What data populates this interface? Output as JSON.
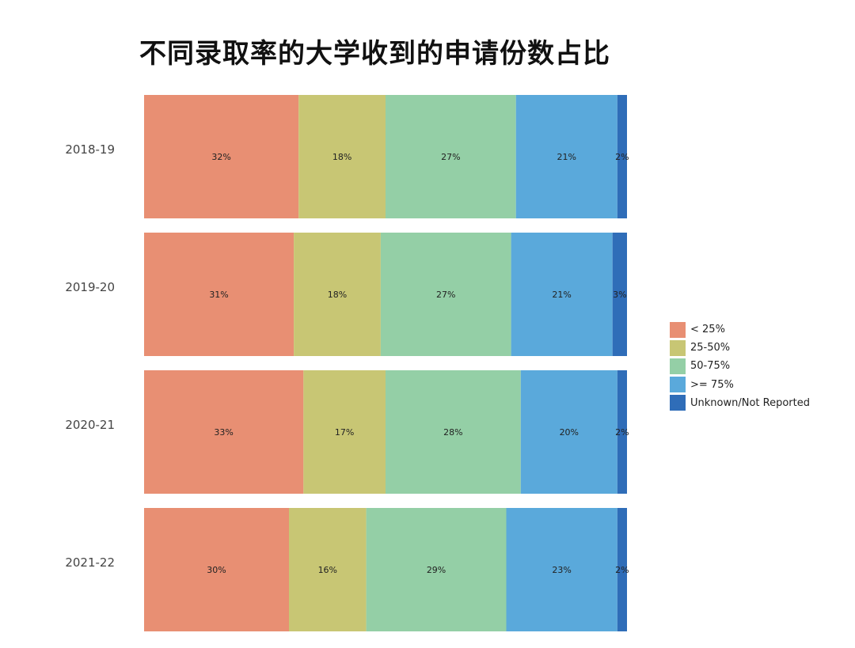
{
  "chart_data": {
    "type": "bar",
    "orientation": "horizontal",
    "stacked": true,
    "percent": true,
    "title": "不同录取率的大学收到的申请份数占比",
    "categories": [
      "2018-19",
      "2019-20",
      "2020-21",
      "2021-22"
    ],
    "series": [
      {
        "name": "< 25%",
        "color": "#e88f73",
        "values": [
          32,
          31,
          33,
          30
        ],
        "labels": [
          "32%",
          "31%",
          "33%",
          "30%"
        ]
      },
      {
        "name": "25-50%",
        "color": "#c8c674",
        "values": [
          18,
          18,
          17,
          16
        ],
        "labels": [
          "18%",
          "18%",
          "17%",
          "16%"
        ]
      },
      {
        "name": "50-75%",
        "color": "#94cfa6",
        "values": [
          27,
          27,
          28,
          29
        ],
        "labels": [
          "27%",
          "27%",
          "28%",
          "29%"
        ]
      },
      {
        "name": ">= 75%",
        "color": "#5aa9db",
        "values": [
          21,
          21,
          20,
          23
        ],
        "labels": [
          "21%",
          "21%",
          "20%",
          "23%"
        ]
      },
      {
        "name": "Unknown/Not Reported",
        "color": "#2f6db8",
        "values": [
          2,
          3,
          2,
          2
        ],
        "labels": [
          "2%",
          "3%",
          "2%",
          "2%"
        ]
      }
    ],
    "xlim": [
      0,
      100
    ],
    "legend": "right",
    "grid": false
  }
}
